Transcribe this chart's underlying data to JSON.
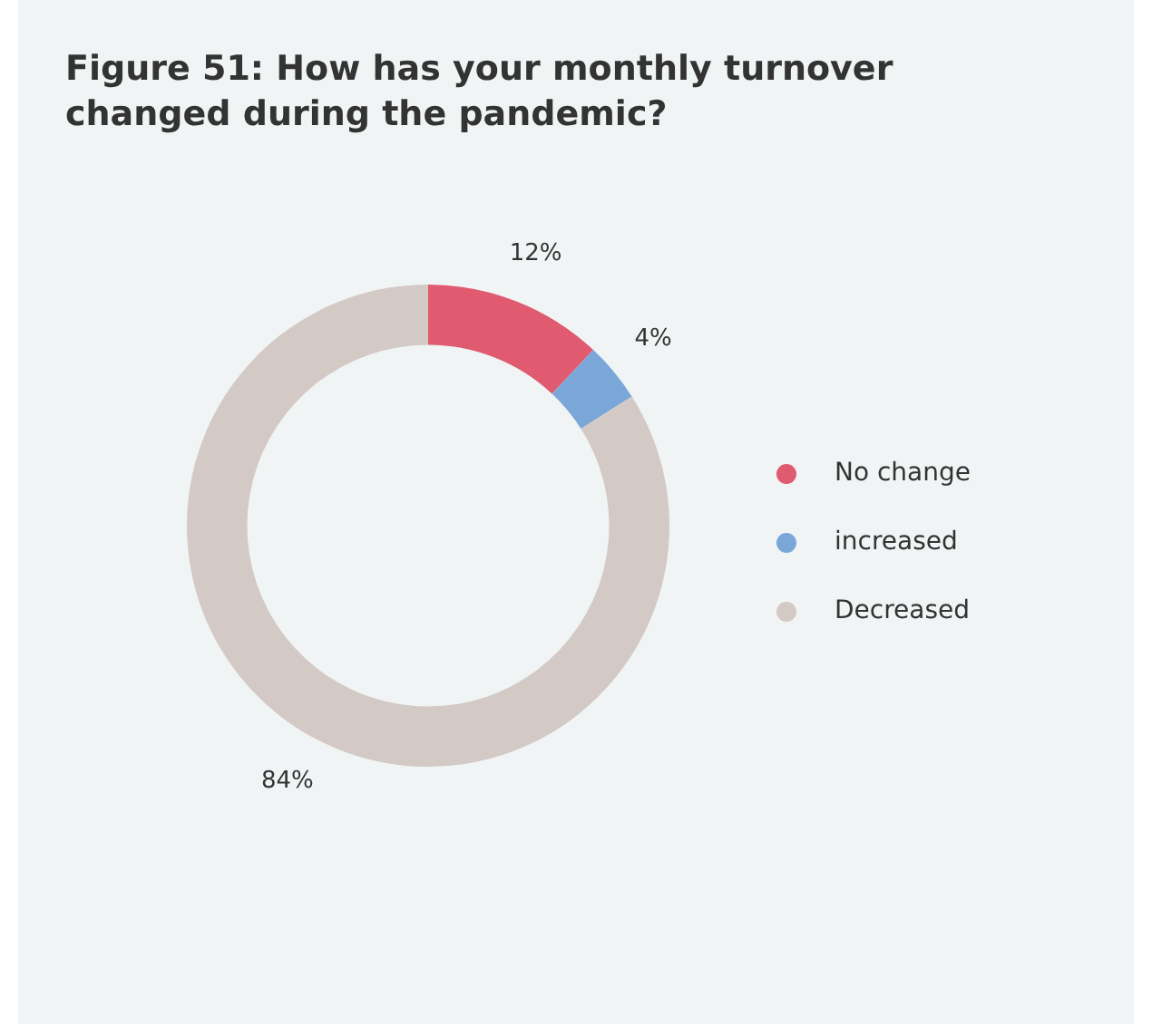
{
  "chart_data": {
    "type": "donut",
    "title": "Figure 51: How has your monthly turnover changed during the pandemic?",
    "categories": [
      "No change",
      "increased",
      "Decreased"
    ],
    "values": [
      12,
      4,
      84
    ],
    "colors": [
      "#e05a70",
      "#7aa7d8",
      "#d3c9c5"
    ],
    "legend": "right",
    "value_labels": [
      "12%",
      "4%",
      "84%"
    ]
  }
}
